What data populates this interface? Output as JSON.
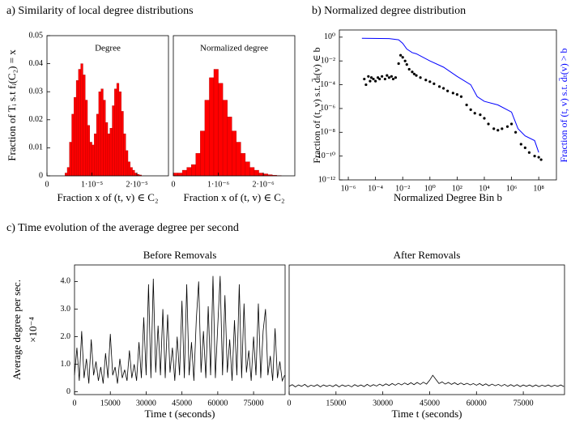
{
  "chart_data": [
    {
      "type": "histogram",
      "title": "a) Similarity of local degree distributions",
      "annotation": "Degree",
      "ylabel": "Fraction of Tᵢ s.t fᵢ(C₂) = x",
      "xlabel": "Fraction x of (t, v) ∈ C₂",
      "color": "#ff0000",
      "bins": [
        4e-06,
        4.5e-06,
        5e-06,
        5.5e-06,
        6e-06,
        6.5e-06,
        7e-06,
        7.5e-06,
        8e-06,
        8.5e-06,
        9e-06,
        9.5e-06,
        1e-05,
        1.05e-05,
        1.1e-05,
        1.15e-05,
        1.2e-05,
        1.25e-05,
        1.3e-05,
        1.35e-05,
        1.4e-05,
        1.45e-05,
        1.5e-05,
        1.55e-05,
        1.6e-05,
        1.65e-05,
        1.7e-05,
        1.75e-05,
        1.8e-05,
        1.85e-05,
        1.9e-05,
        1.95e-05,
        2e-05,
        2.05e-05,
        2.1e-05
      ],
      "counts": [
        0.001,
        0.003,
        0.012,
        0.022,
        0.028,
        0.034,
        0.038,
        0.04,
        0.036,
        0.027,
        0.018,
        0.012,
        0.011,
        0.015,
        0.022,
        0.03,
        0.031,
        0.027,
        0.019,
        0.015,
        0.017,
        0.025,
        0.031,
        0.033,
        0.03,
        0.023,
        0.015,
        0.009,
        0.005,
        0.003,
        0.002,
        0.001,
        0.0005,
        0.0003
      ],
      "xlim": [
        0,
        2.7e-05
      ],
      "xticks": [
        0,
        {
          "value": 1e-05,
          "label": "1·10⁻⁵"
        },
        {
          "value": 2e-05,
          "label": "2·10⁻⁵"
        }
      ],
      "ylim": [
        0,
        0.05
      ],
      "yticks": [
        0,
        0.01,
        0.02,
        0.03,
        0.04,
        0.05
      ]
    },
    {
      "type": "histogram",
      "annotation": "Normalized degree",
      "xlabel": "Fraction x of (t, v) ∈ C₂",
      "color": "#ff0000",
      "bins": [
        0,
        1e-07,
        2e-07,
        3e-07,
        4e-07,
        5e-07,
        6e-07,
        7e-07,
        8e-07,
        9e-07,
        1e-06,
        1.1e-06,
        1.2e-06,
        1.3e-06,
        1.4e-06,
        1.5e-06,
        1.6e-06,
        1.7e-06,
        1.8e-06,
        1.9e-06,
        2e-06,
        2.1e-06,
        2.2e-06,
        2.3e-06,
        2.4e-06
      ],
      "counts": [
        0.001,
        0.001,
        0.002,
        0.003,
        0.004,
        0.008,
        0.016,
        0.027,
        0.035,
        0.038,
        0.033,
        0.027,
        0.021,
        0.016,
        0.012,
        0.008,
        0.005,
        0.003,
        0.002,
        0.001,
        0.0007,
        0.0004,
        0.0002,
        0.0001
      ],
      "xlim": [
        0,
        2.7e-06
      ],
      "xticks": [
        0,
        {
          "value": 1e-06,
          "label": "1·10⁻⁶"
        },
        {
          "value": 2e-06,
          "label": "2·10⁻⁶"
        }
      ],
      "ylim": [
        0,
        0.05
      ]
    },
    {
      "type": "scatter",
      "title": "b) Normalized degree distribution",
      "xlabel": "Normalized Degree Bin b",
      "ylabel": "Fraction of (t, v) s.t. d̄ₜ(v) ∈ b",
      "y2label": "Fraction of (t, v) s.t. d̄ₜ(v) > b",
      "xscale": "log",
      "yscale": "log",
      "xlim": [
        2.2e-07,
        2000000000.0
      ],
      "ylim": [
        1e-12,
        4
      ],
      "xticks": [
        {
          "value": 1e-06,
          "label": "10⁻⁶"
        },
        {
          "value": 0.0001,
          "label": "10⁻⁴"
        },
        {
          "value": 0.01,
          "label": "10⁻²"
        },
        {
          "value": 1,
          "label": "10⁰"
        },
        {
          "value": 100,
          "label": "10²"
        },
        {
          "value": 10000.0,
          "label": "10⁴"
        },
        {
          "value": 1000000.0,
          "label": "10⁶"
        },
        {
          "value": 100000000.0,
          "label": "10⁸"
        }
      ],
      "yticks": [
        {
          "value": 1,
          "label": "10⁰"
        },
        {
          "value": 0.01,
          "label": "10⁻²"
        },
        {
          "value": 0.0001,
          "label": "10⁻⁴"
        },
        {
          "value": 1e-06,
          "label": "10⁻⁶"
        },
        {
          "value": 1e-08,
          "label": "10⁻⁸"
        },
        {
          "value": 1e-10,
          "label": "10⁻¹⁰"
        },
        {
          "value": 1e-12,
          "label": "10⁻¹²"
        }
      ],
      "series": [
        {
          "mode": "markers",
          "color": "#000000",
          "x": [
            1.5e-05,
            2e-05,
            3e-05,
            4e-05,
            5e-05,
            7e-05,
            0.0001,
            0.00015,
            0.0002,
            0.0003,
            0.0005,
            0.0007,
            0.001,
            0.0015,
            0.002,
            0.003,
            0.005,
            0.007,
            0.01,
            0.015,
            0.02,
            0.03,
            0.05,
            0.07,
            0.1,
            0.2,
            0.5,
            1,
            2,
            5,
            10,
            20,
            50,
            100,
            200,
            500,
            1000.0,
            2000.0,
            5000.0,
            10000.0,
            20000.0,
            50000.0,
            100000.0,
            200000.0,
            500000.0,
            1000000.0,
            2000000.0,
            5000000.0,
            10000000.0,
            20000000.0,
            50000000.0,
            100000000.0,
            150000000.0
          ],
          "values": [
            0.0003,
            0.0001,
            0.0005,
            0.0002,
            0.0004,
            0.0003,
            0.0002,
            0.0004,
            0.0003,
            0.0005,
            0.0003,
            0.0006,
            0.0004,
            0.0005,
            0.0003,
            0.0004,
            0.006,
            0.03,
            0.02,
            0.01,
            0.005,
            0.002,
            0.0012,
            0.0008,
            0.0006,
            0.0004,
            0.00025,
            0.00018,
            0.00012,
            7e-05,
            5e-05,
            3e-05,
            2e-05,
            1.5e-05,
            1e-05,
            2e-06,
            8e-07,
            4e-07,
            3e-07,
            1.5e-07,
            5e-08,
            2e-08,
            1.5e-08,
            2e-08,
            3e-08,
            5e-08,
            1e-08,
            1e-09,
            5e-10,
            2e-10,
            1e-10,
            8e-11,
            5e-11
          ]
        },
        {
          "mode": "line",
          "color": "#0000ff",
          "axis": "y2",
          "x": [
            1e-05,
            0.001,
            0.005,
            0.01,
            0.02,
            0.05,
            0.1,
            1,
            10,
            100,
            1000.0,
            3000.0,
            10000.0,
            100000.0,
            1000000.0,
            3000000.0,
            10000000.0,
            50000000.0,
            100000000.0
          ],
          "values": [
            0.8,
            0.75,
            0.6,
            0.3,
            0.1,
            0.05,
            0.04,
            0.01,
            0.003,
            0.0005,
            0.0001,
            1e-05,
            4e-06,
            2e-06,
            5e-07,
            2e-08,
            5e-09,
            2e-09,
            2e-10
          ]
        }
      ]
    },
    {
      "type": "line",
      "title": "c) Time evolution of the average degree per second",
      "subtitle": "Before Removals",
      "ylabel": [
        "Average degree per sec.",
        "×10⁻⁴"
      ],
      "xlabel": "Time t (seconds)",
      "color": "#000000",
      "xlim": [
        0,
        88200
      ],
      "xticks": [
        0,
        15000,
        30000,
        45000,
        60000,
        75000
      ],
      "ylim": [
        -0.1,
        4.6
      ],
      "yticks": [
        0,
        {
          "value": 1,
          "label": "1.0"
        },
        {
          "value": 2,
          "label": "2.0"
        },
        {
          "value": 3,
          "label": "3.0"
        },
        {
          "value": 4,
          "label": "4.0"
        }
      ],
      "x": [
        0,
        1000,
        2000,
        3000,
        4000,
        5000,
        6000,
        7000,
        8000,
        9000,
        10000,
        11000,
        12000,
        13000,
        14000,
        15000,
        16000,
        17000,
        18000,
        19000,
        20000,
        21000,
        22000,
        23000,
        24000,
        25000,
        26000,
        27000,
        28000,
        29000,
        30000,
        31000,
        32000,
        33000,
        34000,
        35000,
        36000,
        37000,
        38000,
        39000,
        40000,
        41000,
        42000,
        43000,
        44000,
        45000,
        46000,
        47000,
        48000,
        49000,
        50000,
        51000,
        52000,
        53000,
        54000,
        55000,
        56000,
        57000,
        58000,
        59000,
        60000,
        61000,
        62000,
        63000,
        64000,
        65000,
        66000,
        67000,
        68000,
        69000,
        70000,
        71000,
        72000,
        73000,
        74000,
        75000,
        76000,
        77000,
        78000,
        79000,
        80000,
        81000,
        82000,
        83000,
        84000,
        85000,
        86000,
        87000,
        88000
      ],
      "values": [
        0.6,
        1.6,
        0.4,
        2.2,
        0.5,
        1.2,
        0.3,
        1.9,
        0.6,
        1.1,
        0.4,
        0.9,
        0.3,
        1.4,
        0.5,
        2.1,
        0.6,
        0.9,
        0.3,
        1.2,
        0.5,
        0.8,
        0.4,
        1.5,
        0.5,
        1.0,
        0.4,
        1.8,
        0.5,
        2.7,
        0.6,
        3.9,
        0.5,
        4.1,
        0.7,
        2.4,
        0.6,
        3.0,
        0.5,
        2.8,
        0.7,
        1.6,
        0.4,
        2.0,
        0.6,
        3.3,
        0.5,
        3.9,
        0.6,
        1.8,
        0.4,
        2.6,
        4.0,
        0.7,
        2.2,
        0.5,
        3.1,
        0.6,
        4.2,
        0.5,
        2.4,
        4.2,
        0.6,
        3.5,
        0.7,
        1.9,
        0.4,
        2.6,
        0.6,
        3.9,
        0.5,
        3.2,
        0.7,
        1.5,
        0.4,
        2.0,
        0.6,
        3.2,
        0.5,
        2.2,
        3.0,
        0.6,
        1.3,
        0.4,
        2.3,
        0.5,
        1.1,
        0.4,
        0.6
      ]
    },
    {
      "type": "line",
      "subtitle": "After Removals",
      "xlabel": "Time t (seconds)",
      "color": "#000000",
      "xlim": [
        0,
        88200
      ],
      "xticks": [
        0,
        15000,
        30000,
        45000,
        60000,
        75000
      ],
      "ylim": [
        -0.1,
        4.6
      ],
      "x": [
        0,
        1000,
        2000,
        3000,
        4000,
        5000,
        6000,
        7000,
        8000,
        9000,
        10000,
        11000,
        12000,
        13000,
        14000,
        15000,
        16000,
        17000,
        18000,
        19000,
        20000,
        21000,
        22000,
        23000,
        24000,
        25000,
        26000,
        27000,
        28000,
        29000,
        30000,
        31000,
        32000,
        33000,
        34000,
        35000,
        36000,
        37000,
        38000,
        39000,
        40000,
        41000,
        42000,
        43000,
        44000,
        45000,
        46000,
        47000,
        48000,
        49000,
        50000,
        51000,
        52000,
        53000,
        54000,
        55000,
        56000,
        57000,
        58000,
        59000,
        60000,
        61000,
        62000,
        63000,
        64000,
        65000,
        66000,
        67000,
        68000,
        69000,
        70000,
        71000,
        72000,
        73000,
        74000,
        75000,
        76000,
        77000,
        78000,
        79000,
        80000,
        81000,
        82000,
        83000,
        84000,
        85000,
        86000,
        87000,
        88000
      ],
      "values": [
        0.2,
        0.26,
        0.18,
        0.25,
        0.2,
        0.27,
        0.18,
        0.24,
        0.2,
        0.26,
        0.18,
        0.25,
        0.2,
        0.24,
        0.19,
        0.26,
        0.18,
        0.25,
        0.2,
        0.24,
        0.18,
        0.26,
        0.2,
        0.25,
        0.19,
        0.27,
        0.2,
        0.26,
        0.21,
        0.28,
        0.22,
        0.29,
        0.23,
        0.3,
        0.24,
        0.31,
        0.25,
        0.32,
        0.26,
        0.33,
        0.26,
        0.34,
        0.27,
        0.35,
        0.28,
        0.42,
        0.6,
        0.45,
        0.3,
        0.36,
        0.28,
        0.34,
        0.27,
        0.33,
        0.26,
        0.32,
        0.26,
        0.31,
        0.25,
        0.3,
        0.24,
        0.3,
        0.23,
        0.29,
        0.22,
        0.28,
        0.22,
        0.27,
        0.21,
        0.27,
        0.2,
        0.26,
        0.2,
        0.26,
        0.19,
        0.25,
        0.2,
        0.25,
        0.19,
        0.25,
        0.19,
        0.24,
        0.2,
        0.25,
        0.19,
        0.24,
        0.2,
        0.25,
        0.19
      ]
    }
  ]
}
